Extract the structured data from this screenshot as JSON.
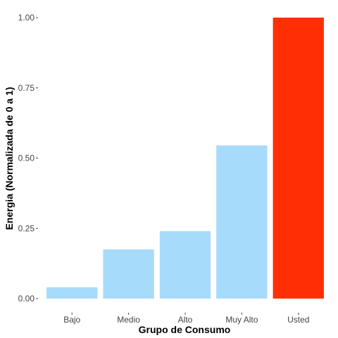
{
  "chart_data": {
    "type": "bar",
    "categories": [
      "Bajo",
      "Medio",
      "Alto",
      "Muy Alto",
      "Usted"
    ],
    "values": [
      0.04,
      0.175,
      0.24,
      0.545,
      1.0
    ],
    "colors": [
      "#a6dbfb",
      "#a6dbfb",
      "#a6dbfb",
      "#a6dbfb",
      "#ff2e05"
    ],
    "xlabel": "Grupo de Consumo",
    "ylabel": "Energia (Normalizada de 0 a 1)",
    "ylim": [
      0,
      1
    ],
    "yticks": [
      0,
      0.25,
      0.5,
      0.75,
      1.0
    ],
    "ytick_labels": [
      "0.00",
      "0.25",
      "0.50",
      "0.75",
      "1.00"
    ],
    "grid": false,
    "legend": "none"
  }
}
